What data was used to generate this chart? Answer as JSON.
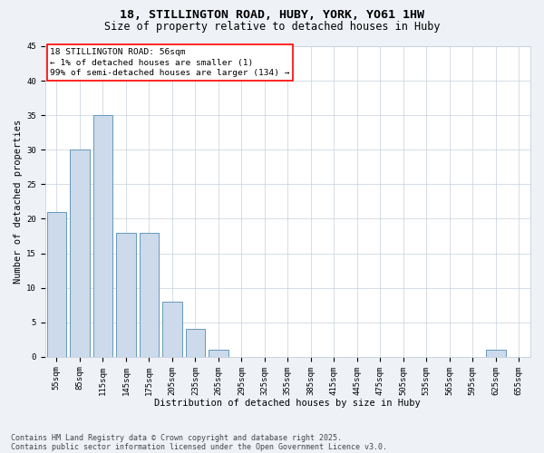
{
  "title_line1": "18, STILLINGTON ROAD, HUBY, YORK, YO61 1HW",
  "title_line2": "Size of property relative to detached houses in Huby",
  "xlabel": "Distribution of detached houses by size in Huby",
  "ylabel": "Number of detached properties",
  "bar_color": "#ccdaeb",
  "bar_edge_color": "#6699bb",
  "categories": [
    "55sqm",
    "85sqm",
    "115sqm",
    "145sqm",
    "175sqm",
    "205sqm",
    "235sqm",
    "265sqm",
    "295sqm",
    "325sqm",
    "355sqm",
    "385sqm",
    "415sqm",
    "445sqm",
    "475sqm",
    "505sqm",
    "535sqm",
    "565sqm",
    "595sqm",
    "625sqm",
    "655sqm"
  ],
  "values": [
    21,
    30,
    35,
    18,
    18,
    8,
    4,
    1,
    0,
    0,
    0,
    0,
    0,
    0,
    0,
    0,
    0,
    0,
    0,
    1,
    0
  ],
  "ylim": [
    0,
    45
  ],
  "yticks": [
    0,
    5,
    10,
    15,
    20,
    25,
    30,
    35,
    40,
    45
  ],
  "annotation_box_text": "18 STILLINGTON ROAD: 56sqm\n← 1% of detached houses are smaller (1)\n99% of semi-detached houses are larger (134) →",
  "footer_line1": "Contains HM Land Registry data © Crown copyright and database right 2025.",
  "footer_line2": "Contains public sector information licensed under the Open Government Licence v3.0.",
  "bg_color": "#eef2f7",
  "plot_bg_color": "#ffffff",
  "grid_color": "#c5d0dc",
  "title_fontsize": 9.5,
  "subtitle_fontsize": 8.5,
  "axis_label_fontsize": 7.5,
  "tick_fontsize": 6.5,
  "annotation_fontsize": 6.8,
  "footer_fontsize": 6.0
}
